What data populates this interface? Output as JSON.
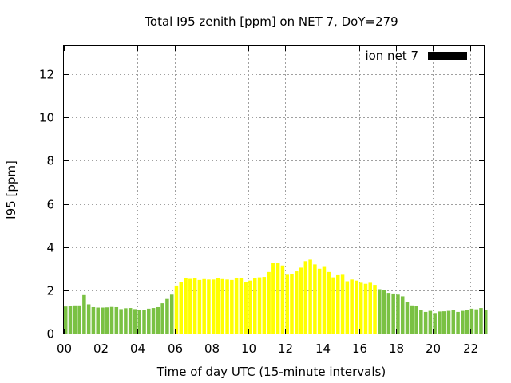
{
  "chart_data": {
    "type": "bar",
    "title": "Total I95 zenith [ppm] on NET 7, DoY=279",
    "xlabel": "Time of day UTC (15-minute intervals)",
    "ylabel": "I95 [ppm]",
    "xlim": [
      0,
      22.75
    ],
    "ylim": [
      0,
      13.3
    ],
    "x_tick_labels": [
      "00",
      "02",
      "04",
      "06",
      "08",
      "10",
      "12",
      "14",
      "16",
      "18",
      "20",
      "22"
    ],
    "x_tick_values": [
      0,
      2,
      4,
      6,
      8,
      10,
      12,
      14,
      16,
      18,
      20,
      22
    ],
    "y_tick_labels": [
      "0",
      "2",
      "4",
      "6",
      "8",
      "10",
      "12"
    ],
    "y_tick_values": [
      0,
      2,
      4,
      6,
      8,
      10,
      12
    ],
    "grid": true,
    "legend": {
      "label": "ion net 7",
      "position": "top-right",
      "color": "#000000"
    },
    "interval_hours": 0.25,
    "colors": {
      "green": "#7ac143",
      "yellow": "#ffff00"
    },
    "values": [
      1.25,
      1.27,
      1.3,
      1.3,
      1.78,
      1.35,
      1.22,
      1.2,
      1.2,
      1.21,
      1.23,
      1.22,
      1.13,
      1.17,
      1.18,
      1.13,
      1.08,
      1.1,
      1.15,
      1.18,
      1.22,
      1.4,
      1.6,
      1.8,
      2.22,
      2.38,
      2.55,
      2.53,
      2.55,
      2.48,
      2.52,
      2.5,
      2.5,
      2.55,
      2.52,
      2.5,
      2.48,
      2.55,
      2.55,
      2.4,
      2.45,
      2.55,
      2.6,
      2.62,
      2.85,
      3.28,
      3.25,
      3.15,
      2.72,
      2.75,
      2.88,
      3.05,
      3.35,
      3.42,
      3.2,
      3.0,
      3.12,
      2.85,
      2.6,
      2.7,
      2.72,
      2.42,
      2.5,
      2.45,
      2.35,
      2.3,
      2.35,
      2.25,
      2.05,
      2.0,
      1.88,
      1.85,
      1.8,
      1.72,
      1.45,
      1.3,
      1.28,
      1.1,
      1.0,
      1.05,
      0.95,
      1.02,
      1.03,
      1.05,
      1.08,
      1.0,
      1.05,
      1.1,
      1.15,
      1.12,
      1.18,
      1.1
    ],
    "bar_colors": [
      "green",
      "green",
      "green",
      "green",
      "green",
      "green",
      "green",
      "green",
      "green",
      "green",
      "green",
      "green",
      "green",
      "green",
      "green",
      "green",
      "green",
      "green",
      "green",
      "green",
      "green",
      "green",
      "green",
      "green",
      "yellow",
      "yellow",
      "yellow",
      "yellow",
      "yellow",
      "yellow",
      "yellow",
      "yellow",
      "yellow",
      "yellow",
      "yellow",
      "yellow",
      "yellow",
      "yellow",
      "yellow",
      "yellow",
      "yellow",
      "yellow",
      "yellow",
      "yellow",
      "yellow",
      "yellow",
      "yellow",
      "yellow",
      "yellow",
      "yellow",
      "yellow",
      "yellow",
      "yellow",
      "yellow",
      "yellow",
      "yellow",
      "yellow",
      "yellow",
      "yellow",
      "yellow",
      "yellow",
      "yellow",
      "yellow",
      "yellow",
      "yellow",
      "yellow",
      "yellow",
      "yellow",
      "green",
      "green",
      "green",
      "green",
      "green",
      "green",
      "green",
      "green",
      "green",
      "green",
      "green",
      "green",
      "green",
      "green",
      "green",
      "green",
      "green",
      "green",
      "green",
      "green",
      "green",
      "green",
      "green",
      "green"
    ]
  }
}
